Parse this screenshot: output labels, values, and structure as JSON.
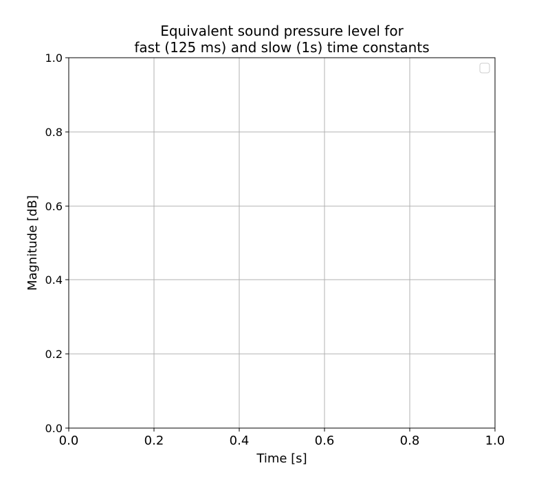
{
  "chart_data": {
    "type": "line",
    "title": [
      "Equivalent sound pressure level for",
      "fast (125 ms) and slow (1s) time constants"
    ],
    "xlabel": "Time [s]",
    "ylabel": "Magnitude [dB]",
    "xlim": [
      0.0,
      1.0
    ],
    "ylim": [
      0.0,
      1.0
    ],
    "xticks": [
      "0.0",
      "0.2",
      "0.4",
      "0.6",
      "0.8",
      "1.0"
    ],
    "yticks": [
      "0.0",
      "0.2",
      "0.4",
      "0.6",
      "0.8",
      "1.0"
    ],
    "grid": true,
    "legend": {
      "placement": "top-right",
      "entries": []
    },
    "series": [],
    "colors": {
      "grid": "#b0b0b0",
      "axes": "#000000",
      "legend_border": "#cccccc"
    }
  }
}
